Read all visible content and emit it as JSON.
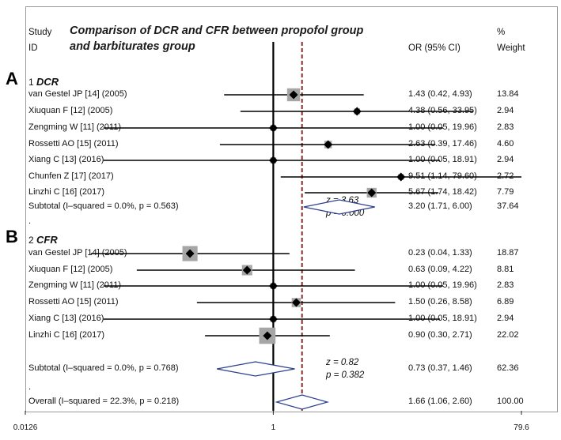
{
  "header": {
    "study_line1": "Study",
    "study_line2": "ID",
    "title_line1": "Comparison of DCR and CFR between propofol group",
    "title_line2": "and barbiturates group",
    "or_header": "OR (95% CI)",
    "weight_line1": "%",
    "weight_line2": "Weight"
  },
  "panels": {
    "a": "A",
    "b": "B"
  },
  "groups": {
    "dcr": {
      "number": "1",
      "name": "DCR"
    },
    "cfr": {
      "number": "2",
      "name": "CFR"
    }
  },
  "chart_data": {
    "type": "forest",
    "title": "Comparison of DCR and CFR between propofol group and barbiturates group",
    "x_scale": "log",
    "xlim": [
      0.0126,
      79.6
    ],
    "x_ticks": [
      "0.0126",
      "1",
      "79.6"
    ],
    "null_line": 1,
    "pooled_reference_line": 1.66,
    "groups": [
      {
        "label": "1 DCR",
        "studies": [
          {
            "id": "van Gestel JP [14] (2005)",
            "or": 1.43,
            "lo": 0.42,
            "hi": 4.93,
            "ci_text": "1.43 (0.42, 4.93)",
            "weight": "13.84"
          },
          {
            "id": "Xiuquan F [12] (2005)",
            "or": 4.38,
            "lo": 0.56,
            "hi": 33.95,
            "ci_text": "4.38 (0.56, 33.95)",
            "weight": "2.94"
          },
          {
            "id": "Zengming W [11] (2011)",
            "or": 1.0,
            "lo": 0.05,
            "hi": 19.96,
            "ci_text": "1.00 (0.05, 19.96)",
            "weight": "2.83"
          },
          {
            "id": "Rossetti AO [15] (2011)",
            "or": 2.63,
            "lo": 0.39,
            "hi": 17.46,
            "ci_text": "2.63 (0.39, 17.46)",
            "weight": "4.60"
          },
          {
            "id": "Xiang C [13] (2016)",
            "or": 1.0,
            "lo": 0.05,
            "hi": 18.91,
            "ci_text": "1.00 (0.05, 18.91)",
            "weight": "2.94"
          },
          {
            "id": "Chunfen Z [17] (2017)",
            "or": 9.51,
            "lo": 1.14,
            "hi": 79.6,
            "ci_text": "9.51 (1.14, 79.60)",
            "weight": "2.72"
          },
          {
            "id": "Linzhi C [16] (2017)",
            "or": 5.67,
            "lo": 1.74,
            "hi": 18.42,
            "ci_text": "5.67 (1.74, 18.42)",
            "weight": "7.79"
          }
        ],
        "subtotal": {
          "label": "Subtotal  (I–squared = 0.0%, p = 0.563)",
          "or": 3.2,
          "lo": 1.71,
          "hi": 6.0,
          "ci_text": "3.20 (1.71, 6.00)",
          "weight": "37.64",
          "z_text": "z =  3.63",
          "p_text": "p = 0.000"
        }
      },
      {
        "label": "2 CFR",
        "studies": [
          {
            "id": "van Gestel JP [14] (2005)",
            "or": 0.23,
            "lo": 0.04,
            "hi": 1.33,
            "ci_text": "0.23 (0.04, 1.33)",
            "weight": "18.87"
          },
          {
            "id": "Xiuquan F [12] (2005)",
            "or": 0.63,
            "lo": 0.09,
            "hi": 4.22,
            "ci_text": "0.63 (0.09, 4.22)",
            "weight": "8.81"
          },
          {
            "id": "Zengming W [11] (2011)",
            "or": 1.0,
            "lo": 0.05,
            "hi": 19.96,
            "ci_text": "1.00 (0.05, 19.96)",
            "weight": "2.83"
          },
          {
            "id": "Rossetti AO [15] (2011)",
            "or": 1.5,
            "lo": 0.26,
            "hi": 8.58,
            "ci_text": "1.50 (0.26, 8.58)",
            "weight": "6.89"
          },
          {
            "id": "Xiang C [13] (2016)",
            "or": 1.0,
            "lo": 0.05,
            "hi": 18.91,
            "ci_text": "1.00 (0.05, 18.91)",
            "weight": "2.94"
          },
          {
            "id": "Linzhi C [16] (2017)",
            "or": 0.9,
            "lo": 0.3,
            "hi": 2.71,
            "ci_text": "0.90 (0.30, 2.71)",
            "weight": "22.02"
          }
        ],
        "subtotal": {
          "label": "Subtotal  (I–squared = 0.0%, p = 0.768)",
          "or": 0.73,
          "lo": 0.37,
          "hi": 1.46,
          "ci_text": "0.73 (0.37, 1.46)",
          "weight": "62.36",
          "z_text": "z =  0.82",
          "p_text": "p = 0.382"
        }
      }
    ],
    "overall": {
      "label": "Overall  (I–squared = 22.3%, p = 0.218)",
      "or": 1.66,
      "lo": 1.06,
      "hi": 2.6,
      "ci_text": "1.66 (1.06, 2.60)",
      "weight": "100.00"
    }
  }
}
